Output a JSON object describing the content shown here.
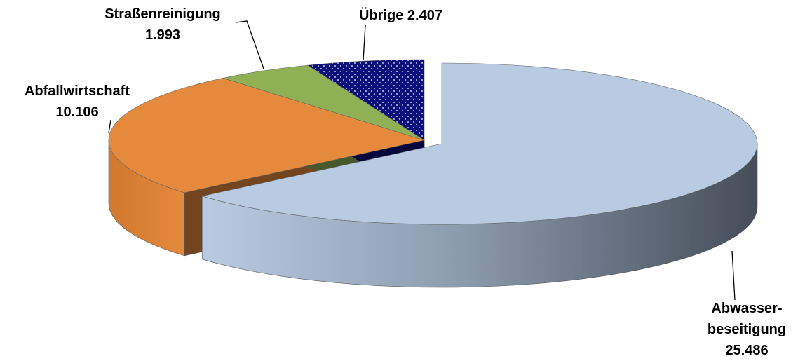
{
  "chart_data": {
    "type": "pie3d",
    "categories": [
      "Abwasser-\nbeseitigung",
      "Abfallwirtschaft",
      "Straßenreinigung",
      "Übrige"
    ],
    "values": [
      25486,
      10106,
      1993,
      2407
    ],
    "value_labels": [
      "25.486",
      "10.106",
      "1.993",
      "2.407"
    ],
    "colors": [
      "#b9cbe2",
      "#e58a3d",
      "#8fb054",
      "#0a0f7a"
    ],
    "patterns": [
      null,
      null,
      null,
      "dots"
    ]
  }
}
